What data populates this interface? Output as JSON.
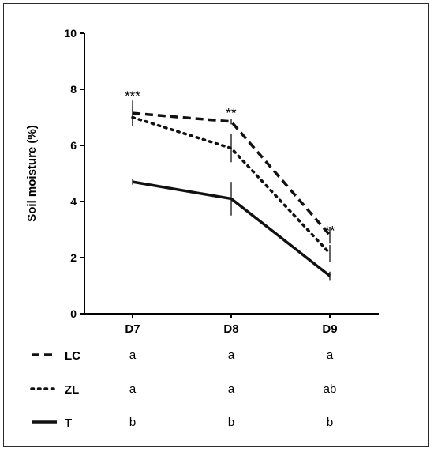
{
  "chart_data": {
    "type": "line",
    "ylabel": "Soil moisture (%)",
    "xlabel": "",
    "ylim": [
      0,
      10
    ],
    "y_ticks": [
      "0",
      "2",
      "4",
      "6",
      "8",
      "10"
    ],
    "categories": [
      "D7",
      "D8",
      "D9"
    ],
    "series": [
      {
        "name": "LC",
        "line_style": "dashed",
        "values": [
          7.15,
          6.85,
          2.8
        ],
        "errors": [
          0.45,
          0.1,
          0.3
        ]
      },
      {
        "name": "ZL",
        "line_style": "dotted",
        "values": [
          7.0,
          5.9,
          2.15
        ],
        "errors": [
          0.3,
          0.5,
          0.3
        ]
      },
      {
        "name": "T",
        "line_style": "solid",
        "values": [
          4.7,
          4.1,
          1.35
        ],
        "errors": [
          0.1,
          0.6,
          0.15
        ]
      }
    ],
    "significance": [
      {
        "category": "D7",
        "label": "***",
        "y": 8.0
      },
      {
        "category": "D8",
        "label": "**",
        "y": 7.4
      },
      {
        "category": "D9",
        "label": "**",
        "y": 3.2
      }
    ],
    "letters_table": [
      {
        "series": "LC",
        "letters": [
          "a",
          "a",
          "a"
        ]
      },
      {
        "series": "ZL",
        "letters": [
          "a",
          "a",
          "ab"
        ]
      },
      {
        "series": "T",
        "letters": [
          "b",
          "b",
          "b"
        ]
      }
    ],
    "colors": {
      "line": "#111111",
      "axis": "#000000"
    },
    "grid": false,
    "legend_placement": "bottom-left (row table)"
  }
}
